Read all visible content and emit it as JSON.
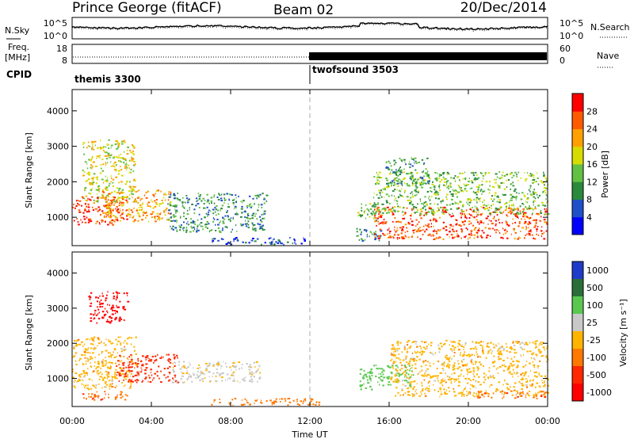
{
  "header": {
    "station": "Prince George (fitACF)",
    "beam": "Beam 02",
    "date": "20/Dec/2014"
  },
  "strip_panels": {
    "nsky_label": "N.Sky",
    "nsearch_label": "N.Search",
    "noise_ticks": [
      "10^5",
      "10^0"
    ],
    "freq_label_1": "Freq.",
    "freq_label_2": "[MHz]",
    "freq_ticks": [
      18,
      8
    ],
    "nave_label": "Nave",
    "nave_ticks": [
      60,
      0
    ],
    "cpid_label": "CPID",
    "modes": [
      {
        "name": "themis 3300",
        "start_hour": 0
      },
      {
        "name": "twofsound 3503",
        "start_hour": 12
      }
    ]
  },
  "chart_data": [
    {
      "type": "heatmap",
      "panel": "power",
      "ylabel": "Slant Range [km]",
      "xlabel": "",
      "ylim": [
        200,
        4600
      ],
      "xlim": [
        0,
        24
      ],
      "yticks": [
        1000,
        2000,
        3000,
        4000
      ],
      "colorbar": {
        "label": "Power [dB]",
        "range": [
          0,
          32
        ],
        "ticks": [
          4,
          8,
          12,
          16,
          20,
          24,
          28
        ],
        "colors": [
          "#0000ff",
          "#2050c8",
          "#2a8a3c",
          "#62c043",
          "#d7dc00",
          "#ffa000",
          "#ff5a00",
          "#ff0000"
        ]
      },
      "regions": [
        {
          "t": [
            0.0,
            2.8
          ],
          "r": [
            800,
            1600
          ],
          "level": 28
        },
        {
          "t": [
            0.5,
            3.2
          ],
          "r": [
            1400,
            3200
          ],
          "level": 18
        },
        {
          "t": [
            1.5,
            5.0
          ],
          "r": [
            900,
            1800
          ],
          "level": 22
        },
        {
          "t": [
            4.8,
            9.8
          ],
          "r": [
            600,
            1700
          ],
          "level": 10
        },
        {
          "t": [
            7.0,
            12.0
          ],
          "r": [
            250,
            450
          ],
          "level": 6
        },
        {
          "t": [
            14.4,
            15.3
          ],
          "r": [
            900,
            1400
          ],
          "level": 14
        },
        {
          "t": [
            14.3,
            15.6
          ],
          "r": [
            350,
            700
          ],
          "level": 10
        },
        {
          "t": [
            15.2,
            24.0
          ],
          "r": [
            400,
            1300
          ],
          "level": 27
        },
        {
          "t": [
            15.2,
            24.0
          ],
          "r": [
            1100,
            2300
          ],
          "level": 14
        },
        {
          "t": [
            15.8,
            18.0
          ],
          "r": [
            1900,
            2700
          ],
          "level": 11
        }
      ]
    },
    {
      "type": "heatmap",
      "panel": "velocity",
      "ylabel": "Slant Range [km]",
      "xlabel": "Time UT",
      "ylim": [
        200,
        4600
      ],
      "xlim": [
        0,
        24
      ],
      "yticks": [
        1000,
        2000,
        3000,
        4000
      ],
      "xticks": [
        "00:00",
        "04:00",
        "08:00",
        "12:00",
        "16:00",
        "20:00",
        "00:00"
      ],
      "colorbar": {
        "label": "Velocity [m s⁻¹]",
        "ticks": [
          1000,
          500,
          100,
          25,
          -25,
          -100,
          -500,
          -1000
        ],
        "colors": [
          "#1f3cc8",
          "#2a6e3a",
          "#5ac850",
          "#c8c8c8",
          "#ffb400",
          "#ff7800",
          "#ff2800",
          "#ff0000"
        ]
      },
      "regions": [
        {
          "t": [
            0.0,
            3.2
          ],
          "r": [
            700,
            2200
          ],
          "vel": 0
        },
        {
          "t": [
            2.2,
            5.3
          ],
          "r": [
            900,
            1700
          ],
          "vel": -300
        },
        {
          "t": [
            0.5,
            2.8
          ],
          "r": [
            400,
            650
          ],
          "vel": -80
        },
        {
          "t": [
            0.8,
            2.8
          ],
          "r": [
            2600,
            3500
          ],
          "vel": -700
        },
        {
          "t": [
            5.0,
            9.5
          ],
          "r": [
            900,
            1500
          ],
          "vel": 40
        },
        {
          "t": [
            7.0,
            12.5
          ],
          "r": [
            250,
            450
          ],
          "vel": -60
        },
        {
          "t": [
            14.5,
            15.1
          ],
          "r": [
            700,
            1300
          ],
          "vel": 400
        },
        {
          "t": [
            15.2,
            17.2
          ],
          "r": [
            800,
            1400
          ],
          "vel": 150
        },
        {
          "t": [
            16.0,
            24.0
          ],
          "r": [
            500,
            2100
          ],
          "vel": 0
        },
        {
          "t": [
            20.0,
            24.0
          ],
          "r": [
            450,
            650
          ],
          "vel": -80
        }
      ]
    }
  ]
}
